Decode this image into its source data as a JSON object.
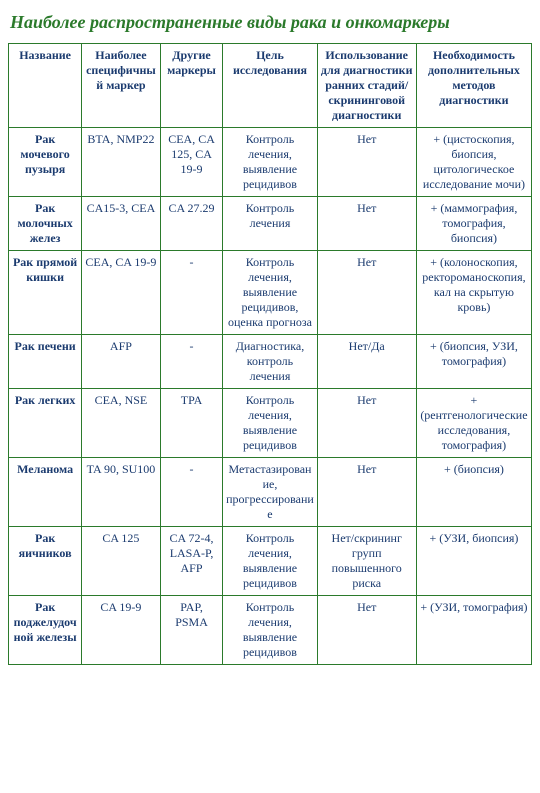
{
  "title": "Наиболее распространенные виды рака и онкомаркеры",
  "columns": [
    "Название",
    "Наиболее специфичный маркер",
    "Другие маркеры",
    "Цель исследования",
    "Использование для диагностики ранних стадий/ скрининговой диагностики",
    "Необходимость дополнительных методов диагностики"
  ],
  "rows": [
    {
      "name": "Рак мочевого пузыря",
      "marker": "BTA, NMP22",
      "others": "CEA, CA 125, CA 19-9",
      "purpose": "Контроль лечения, выявление рецидивов",
      "screening": "Нет",
      "additional": "+ (цистоскопия, биопсия, цитологическое исследование мочи)"
    },
    {
      "name": "Рак молочных желез",
      "marker": "CA15-3, CEA",
      "others": "CA 27.29",
      "purpose": "Контроль лечения",
      "screening": "Нет",
      "additional": "+ (маммография, томография, биопсия)"
    },
    {
      "name": "Рак прямой кишки",
      "marker": "CEA, CA 19-9",
      "others": "-",
      "purpose": "Контроль лечения, выявление рецидивов, оценка прогноза",
      "screening": "Нет",
      "additional": "+ (колоноскопия, ректороманоскопия, кал на скрытую кровь)"
    },
    {
      "name": "Рак печени",
      "marker": "AFP",
      "others": "-",
      "purpose": "Диагностика, контроль лечения",
      "screening": "Нет/Да",
      "additional": "+ (биопсия, УЗИ, томография)"
    },
    {
      "name": "Рак легких",
      "marker": "CEA, NSE",
      "others": "TPA",
      "purpose": "Контроль лечения, выявление рецидивов",
      "screening": "Нет",
      "additional": "+ (рентгенологические исследования, томография)"
    },
    {
      "name": "Меланома",
      "marker": "TA 90, SU100",
      "others": "-",
      "purpose": "Метастазирование, прогрессирование",
      "screening": "Нет",
      "additional": "+ (биопсия)"
    },
    {
      "name": "Рак яичников",
      "marker": "CA 125",
      "others": "CA 72-4, LASA-P, AFP",
      "purpose": "Контроль лечения, выявление рецидивов",
      "screening": "Нет/скрининг групп повышенного риска",
      "additional": "+ (УЗИ, биопсия)"
    },
    {
      "name": "Рак поджелудочной железы",
      "marker": "CA 19-9",
      "others": "PAP, PSMA",
      "purpose": "Контроль лечения, выявление рецидивов",
      "screening": "Нет",
      "additional": "+ (УЗИ, томография)"
    }
  ]
}
